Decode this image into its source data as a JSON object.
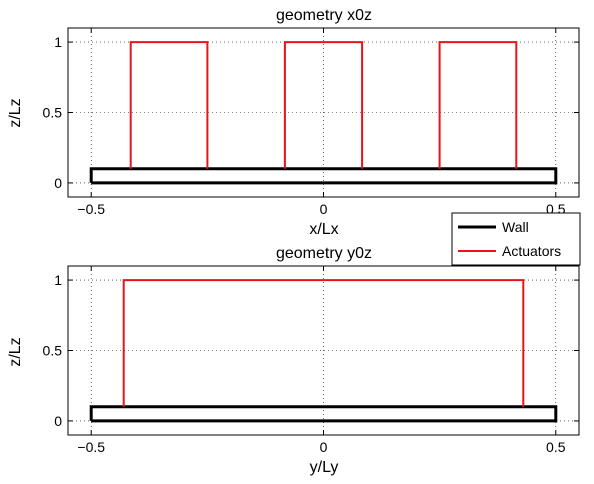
{
  "chart_data": [
    {
      "type": "line",
      "title": "geometry x0z",
      "xlabel": "x/Lx",
      "ylabel": "z/Lz",
      "xlim": [
        -0.55,
        0.55
      ],
      "ylim": [
        -0.1,
        1.1
      ],
      "xticks": [
        -0.5,
        0,
        0.5
      ],
      "yticks": [
        0,
        0.5,
        1
      ],
      "xtick_labels": [
        "−0.5",
        "0",
        "0.5"
      ],
      "ytick_labels": [
        "0",
        "0.5",
        "1"
      ],
      "grid": true,
      "series": [
        {
          "name": "Wall",
          "color": "#000000",
          "polylines": [
            [
              [
                -0.5,
                0
              ],
              [
                0.5,
                0
              ],
              [
                0.5,
                0.1
              ],
              [
                -0.5,
                0.1
              ],
              [
                -0.5,
                0
              ]
            ]
          ]
        },
        {
          "name": "Actuators",
          "color": "#e8141b",
          "polylines": [
            [
              [
                -0.415,
                0.1
              ],
              [
                -0.415,
                1
              ],
              [
                -0.25,
                1
              ],
              [
                -0.25,
                0.1
              ]
            ],
            [
              [
                -0.083,
                0.1
              ],
              [
                -0.083,
                1
              ],
              [
                0.083,
                1
              ],
              [
                0.083,
                0.1
              ]
            ],
            [
              [
                0.25,
                0.1
              ],
              [
                0.25,
                1
              ],
              [
                0.415,
                1
              ],
              [
                0.415,
                0.1
              ]
            ]
          ]
        }
      ]
    },
    {
      "type": "line",
      "title": "geometry y0z",
      "xlabel": "y/Ly",
      "ylabel": "z/Lz",
      "xlim": [
        -0.55,
        0.55
      ],
      "ylim": [
        -0.1,
        1.1
      ],
      "xticks": [
        -0.5,
        0,
        0.5
      ],
      "yticks": [
        0,
        0.5,
        1
      ],
      "xtick_labels": [
        "−0.5",
        "0",
        "0.5"
      ],
      "ytick_labels": [
        "0",
        "0.5",
        "1"
      ],
      "grid": true,
      "series": [
        {
          "name": "Wall",
          "color": "#000000",
          "polylines": [
            [
              [
                -0.5,
                0
              ],
              [
                0.5,
                0
              ],
              [
                0.5,
                0.1
              ],
              [
                -0.5,
                0.1
              ],
              [
                -0.5,
                0
              ]
            ]
          ]
        },
        {
          "name": "Actuators",
          "color": "#e8141b",
          "polylines": [
            [
              [
                -0.43,
                0.1
              ],
              [
                -0.43,
                1
              ],
              [
                0.43,
                1
              ],
              [
                0.43,
                0.1
              ]
            ]
          ]
        }
      ]
    }
  ],
  "legend": {
    "placement": "between-plots-right",
    "entries": [
      {
        "label": "Wall",
        "color": "#000000"
      },
      {
        "label": "Actuators",
        "color": "#e8141b"
      }
    ]
  }
}
